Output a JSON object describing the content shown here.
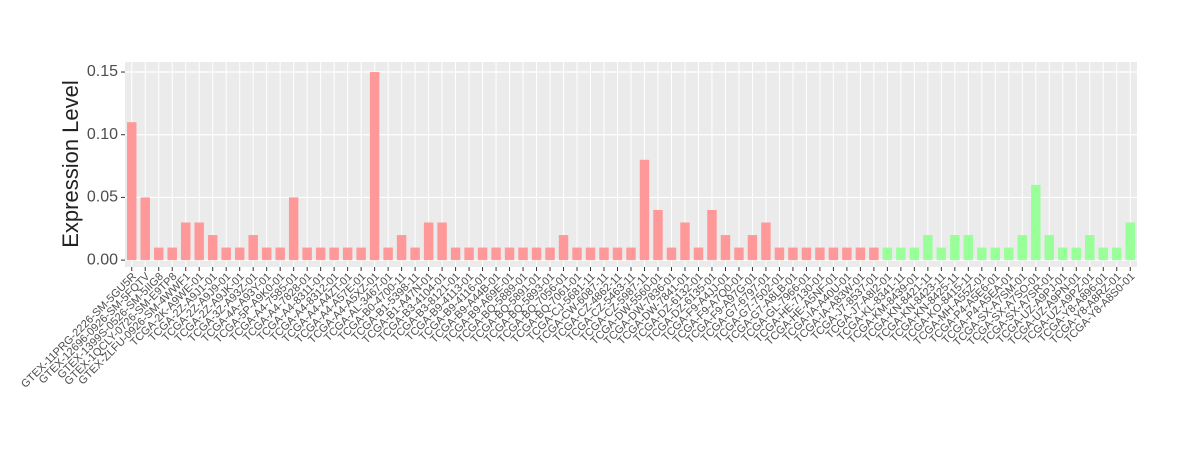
{
  "chart_data": {
    "type": "bar",
    "ylabel": "Expression Level",
    "categories": [
      "GTEX-11PRG-2226-SM-5GU5R",
      "GTEX-12696-0926-SM-5FQTV",
      "GTEX-1399S-0526-SM-5IIG8",
      "GTEX-1QCLY-0726-SM-E9TP8",
      "GTEX-ZLFU-0926-SM-4WWF1",
      "TCGA-2K-A9WE-01",
      "TCGA-2Z-A9J1-01",
      "TCGA-2Z-A9J9-01",
      "TCGA-2Z-A9JK-01",
      "TCGA-3Z-A93Z-01",
      "TCGA-4A-A93Y-01",
      "TCGA-5P-A9K0-01",
      "TCGA-A4-7585-01",
      "TCGA-A4-7828-01",
      "TCGA-A4-8311-01",
      "TCGA-A4-8312-01",
      "TCGA-A4-A4ZT-01",
      "TCGA-A4-A57E-01",
      "TCGA-A4-A5XZ-01",
      "TCGA-AL-3467-01",
      "TCGA-B0-4700-11",
      "TCGA-B1-5398-11",
      "TCGA-B1-A47N-01",
      "TCGA-B3-4104-01",
      "TCGA-B3-8121-01",
      "TCGA-B9-4113-01",
      "TCGA-B9-4116-01",
      "TCGA-B9-A44B-01",
      "TCGA-B9-A69E-01",
      "TCGA-BQ-5889-01",
      "TCGA-BQ-5891-01",
      "TCGA-BQ-5893-01",
      "TCGA-BQ-7056-01",
      "TCGA-BQ-7061-01",
      "TCGA-CJ-5681-11",
      "TCGA-CW-6087-11",
      "TCGA-CZ-4862-11",
      "TCGA-CZ-5463-11",
      "TCGA-CZ-5987-11",
      "TCGA-DW-5560-01",
      "TCGA-DW-7836-01",
      "TCGA-DW-7841-01",
      "TCGA-DZ-6132-01",
      "TCGA-DZ-6135-01",
      "TCGA-F9-A4JJ-01",
      "TCGA-F9-A7Q0-01",
      "TCGA-F9-A97G-01",
      "TCGA-G7-6797-01",
      "TCGA-G7-7502-01",
      "TCGA-G7-A8LB-01",
      "TCGA-GL-7966-01",
      "TCGA-HE-7130-01",
      "TCGA-HE-A5NF-01",
      "TCGA-IA-A40U-01",
      "TCGA-IA-A83W-01",
      "TCGA-J7-8537-01",
      "TCGA-J7-A8I2-01",
      "TCGA-KL-8341-11",
      "TCGA-KM-8439-01",
      "TCGA-KN-8421-11",
      "TCGA-KN-8423-11",
      "TCGA-KN-8425-11",
      "TCGA-KO-8415-11",
      "TCGA-MH-A55Z-01",
      "TCGA-P4-A5E6-01",
      "TCGA-P4-A5EA-01",
      "TCGA-SX-A7SM-01",
      "TCGA-SX-A7SO-01",
      "TCGA-SX-A7SR-01",
      "TCGA-UZ-A9PJ-01",
      "TCGA-UZ-A9PN-01",
      "TCGA-UZ-A9PZ-01",
      "TCGA-Y8-A896-01",
      "TCGA-Y8-A8RZ-01",
      "TCGA-Y8-A8S0-01"
    ],
    "values": [
      0.11,
      0.05,
      0.01,
      0.01,
      0.03,
      0.03,
      0.02,
      0.01,
      0.01,
      0.02,
      0.01,
      0.01,
      0.05,
      0.01,
      0.01,
      0.01,
      0.01,
      0.01,
      0.15,
      0.01,
      0.02,
      0.01,
      0.03,
      0.03,
      0.01,
      0.01,
      0.01,
      0.01,
      0.01,
      0.01,
      0.01,
      0.01,
      0.02,
      0.01,
      0.01,
      0.01,
      0.01,
      0.01,
      0.08,
      0.04,
      0.01,
      0.03,
      0.01,
      0.04,
      0.02,
      0.01,
      0.02,
      0.03,
      0.01,
      0.01,
      0.01,
      0.01,
      0.01,
      0.01,
      0.01,
      0.01,
      0.01,
      0.01,
      0.01,
      0.02,
      0.01,
      0.02,
      0.02,
      0.01,
      0.01,
      0.01,
      0.02,
      0.06,
      0.02,
      0.01,
      0.01,
      0.02,
      0.01,
      0.01,
      0.03
    ],
    "colors": [
      "#ff9999",
      "#ff9999",
      "#ff9999",
      "#ff9999",
      "#ff9999",
      "#ff9999",
      "#ff9999",
      "#ff9999",
      "#ff9999",
      "#ff9999",
      "#ff9999",
      "#ff9999",
      "#ff9999",
      "#ff9999",
      "#ff9999",
      "#ff9999",
      "#ff9999",
      "#ff9999",
      "#ff9999",
      "#ff9999",
      "#ff9999",
      "#ff9999",
      "#ff9999",
      "#ff9999",
      "#ff9999",
      "#ff9999",
      "#ff9999",
      "#ff9999",
      "#ff9999",
      "#ff9999",
      "#ff9999",
      "#ff9999",
      "#ff9999",
      "#ff9999",
      "#ff9999",
      "#ff9999",
      "#ff9999",
      "#ff9999",
      "#ff9999",
      "#ff9999",
      "#ff9999",
      "#ff9999",
      "#ff9999",
      "#ff9999",
      "#ff9999",
      "#ff9999",
      "#ff9999",
      "#ff9999",
      "#ff9999",
      "#ff9999",
      "#ff9999",
      "#ff9999",
      "#ff9999",
      "#ff9999",
      "#ff9999",
      "#ff9999",
      "#99ff99",
      "#99ff99",
      "#99ff99",
      "#99ff99",
      "#99ff99",
      "#99ff99",
      "#99ff99",
      "#99ff99",
      "#99ff99",
      "#99ff99",
      "#99ff99",
      "#99ff99",
      "#99ff99",
      "#99ff99",
      "#99ff99",
      "#99ff99",
      "#99ff99",
      "#99ff99",
      "#99ff99"
    ],
    "ylim": [
      -0.0055,
      0.158
    ],
    "yticks": [
      {
        "value": 0,
        "label": "0.00"
      },
      {
        "value": 0.05,
        "label": "0.05"
      },
      {
        "value": 0.1,
        "label": "0.10"
      },
      {
        "value": 0.15,
        "label": "0.15"
      }
    ],
    "grid": true
  }
}
